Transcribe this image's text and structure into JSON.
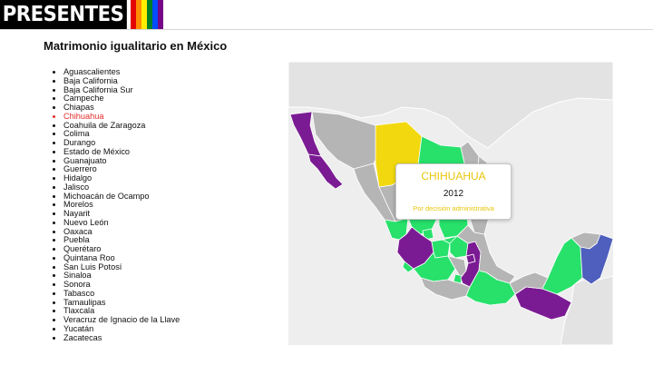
{
  "header": {
    "logo_text": "PRESENTES",
    "pride_colors": [
      "#e40303",
      "#ff8c00",
      "#ffed00",
      "#008026",
      "#004dff",
      "#750787"
    ]
  },
  "page": {
    "title": "Matrimonio igualitario en México"
  },
  "states": [
    "Aguascalientes",
    "Baja California",
    "Baja California Sur",
    "Campeche",
    "Chiapas",
    "Chihuahua",
    "Coahuila de Zaragoza",
    "Colima",
    "Durango",
    "Estado de México",
    "Guanajuato",
    "Guerrero",
    "Hidalgo",
    "Jalisco",
    "Michoacán de Ocampo",
    "Morelos",
    "Nayarit",
    "Nuevo León",
    "Oaxaca",
    "Puebla",
    "Querétaro",
    "Quintana Roo",
    "San Luis Potosí",
    "Sinaloa",
    "Sonora",
    "Tabasco",
    "Tamaulipas",
    "Tlaxcala",
    "Veracruz de Ignacio de la Llave",
    "Yucatán",
    "Zacatecas"
  ],
  "selected_state": "Chihuahua",
  "map": {
    "colors": {
      "background": "#eeeeee",
      "purple": "#7b1b93",
      "green": "#27e16b",
      "gray": "#b5b5b5",
      "yellow": "#f2d90f",
      "blue": "#4e5fbd",
      "neighbor": "#e3e3e3",
      "border": "#ffffff"
    }
  },
  "tooltip": {
    "state": "CHIHUAHUA",
    "year": "2012",
    "note": "Por decisión administrativa",
    "color": "#e8c60a"
  }
}
